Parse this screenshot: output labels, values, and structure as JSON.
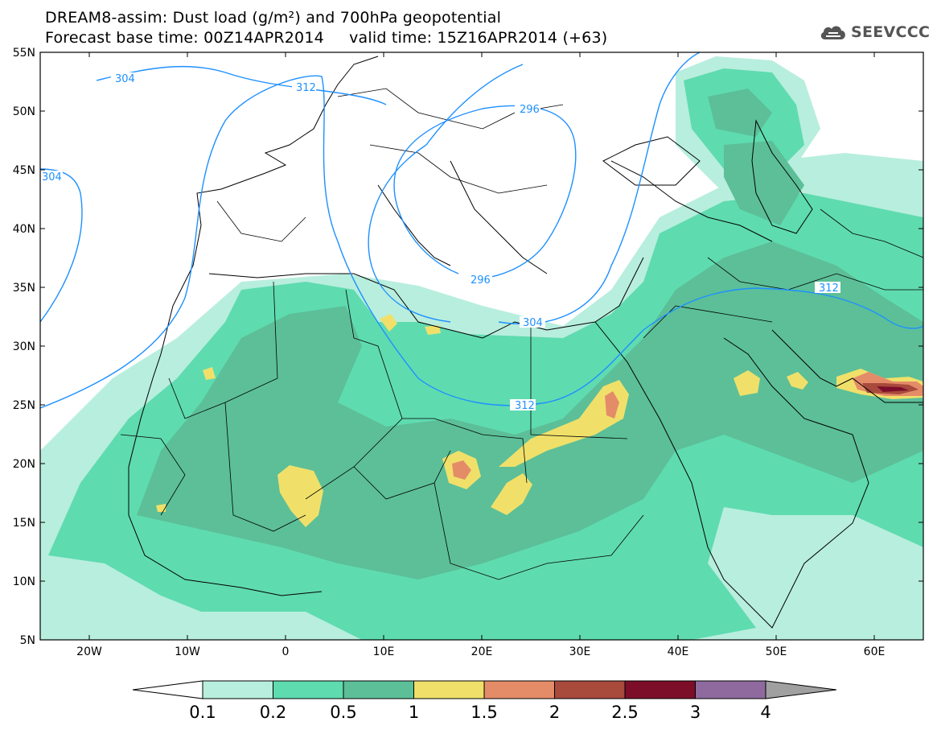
{
  "title": {
    "line1": "DREAM8-assim: Dust load (g/m²) and 700hPa geopotential",
    "line2": "Forecast base time: 00Z14APR2014     valid time: 15Z16APR2014 (+63)"
  },
  "logo": {
    "text": "SEEVCCC",
    "icon": "cloud-icon"
  },
  "map": {
    "lat_labels": [
      "55N",
      "50N",
      "45N",
      "40N",
      "35N",
      "30N",
      "25N",
      "20N",
      "15N",
      "10N",
      "5N"
    ],
    "lon_labels": [
      "20W",
      "10W",
      "0",
      "10E",
      "20E",
      "30E",
      "40E",
      "50E",
      "60E"
    ],
    "lat_range": [
      5,
      55
    ],
    "lon_range": [
      -25,
      65
    ],
    "contour_labels": [
      "304",
      "312",
      "296",
      "304",
      "296",
      "304",
      "312",
      "312"
    ],
    "contour_color": "#1e90ff"
  },
  "colorbar": {
    "labels": [
      "0.1",
      "0.2",
      "0.5",
      "1",
      "1.5",
      "2",
      "2.5",
      "3",
      "4"
    ],
    "colors": [
      "#b8eedd",
      "#5fdbb0",
      "#5cbf98",
      "#f0e06a",
      "#e48c68",
      "#a84a3c",
      "#7c0e2a",
      "#8e6a9e"
    ],
    "under_color": "#ffffff",
    "over_color": "#a0a0a0"
  }
}
